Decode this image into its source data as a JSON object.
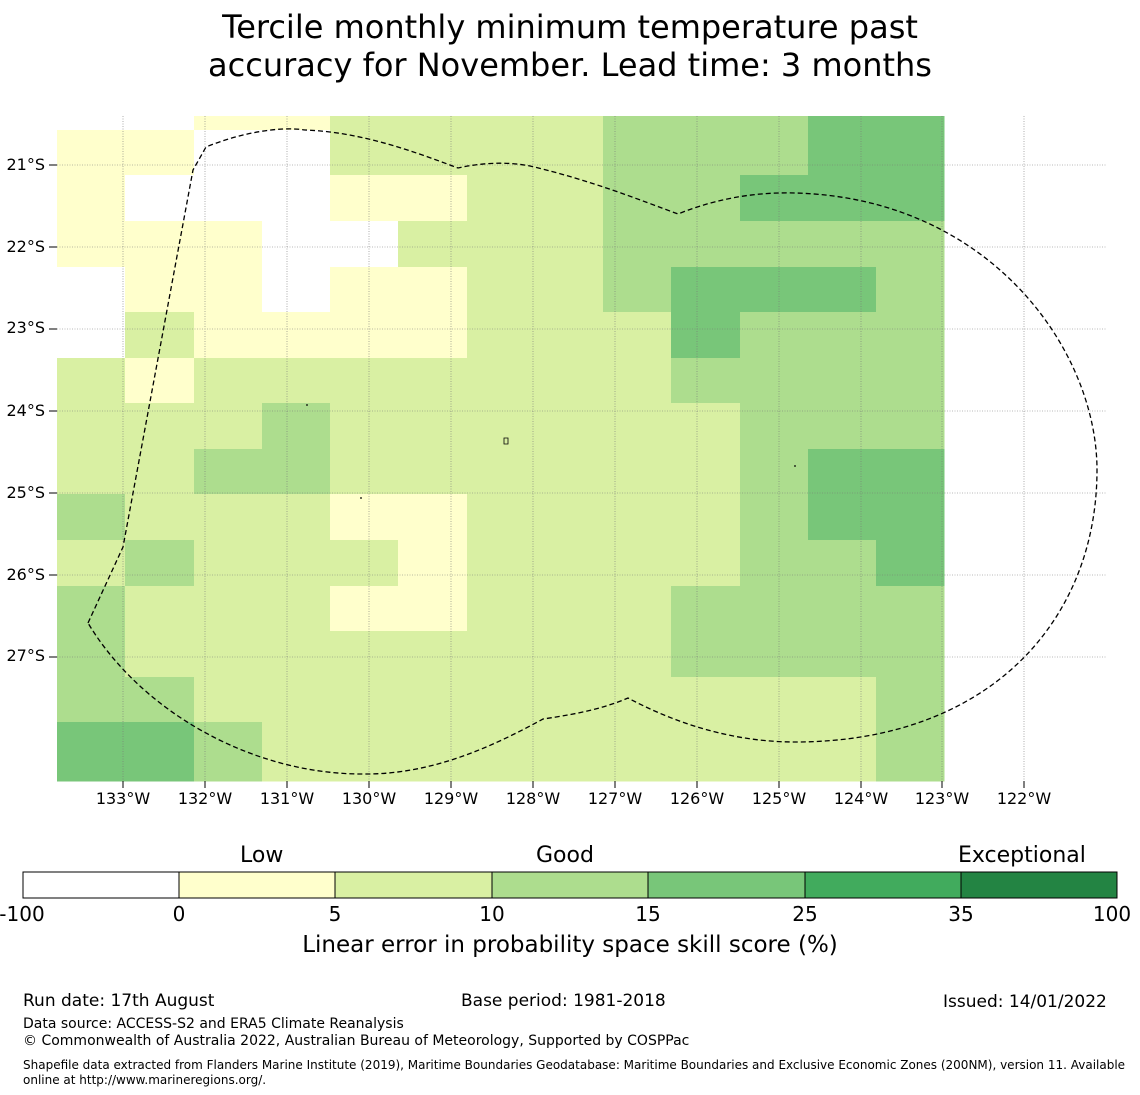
{
  "title": {
    "line1": "Tercile monthly minimum temperature past",
    "line2": "accuracy for November. Lead time: 3 months"
  },
  "map": {
    "lat_labels": [
      "21°S",
      "22°S",
      "23°S",
      "24°S",
      "25°S",
      "26°S",
      "27°S"
    ],
    "lon_labels": [
      "133°W",
      "132°W",
      "131°W",
      "130°W",
      "129°W",
      "128°W",
      "127°W",
      "126°W",
      "125°W",
      "124°W",
      "123°W",
      "122°W"
    ],
    "boundary_style": "dashed",
    "grid_style": "dotted"
  },
  "colorbar": {
    "categories": [
      "Low",
      "Good",
      "Exceptional"
    ],
    "ticks": [
      "-100",
      "0",
      "5",
      "10",
      "15",
      "25",
      "35",
      "100"
    ],
    "colors": [
      "#ffffff",
      "#ffffcc",
      "#d9f0a3",
      "#addd8e",
      "#78c679",
      "#41ab5d",
      "#238443"
    ],
    "label": "Linear error in probability space skill score (%)"
  },
  "footer": {
    "run_date": "Run date: 17th August",
    "base_period": "Base period: 1981-2018",
    "issued": "Issued: 14/01/2022",
    "data_source": "Data source: ACCESS-S2 and ERA5 Climate Reanalysis",
    "copyright": "© Commonwealth of Australia 2022, Australian Bureau of Meteorology, Supported by COSPPac",
    "shapefile": "Shapefile data extracted from Flanders Marine Institute (2019), Maritime Boundaries Geodatabase: Maritime Boundaries and Exclusive Economic Zones (200NM), version 11. Available online at http://www.marineregions.org/."
  }
}
